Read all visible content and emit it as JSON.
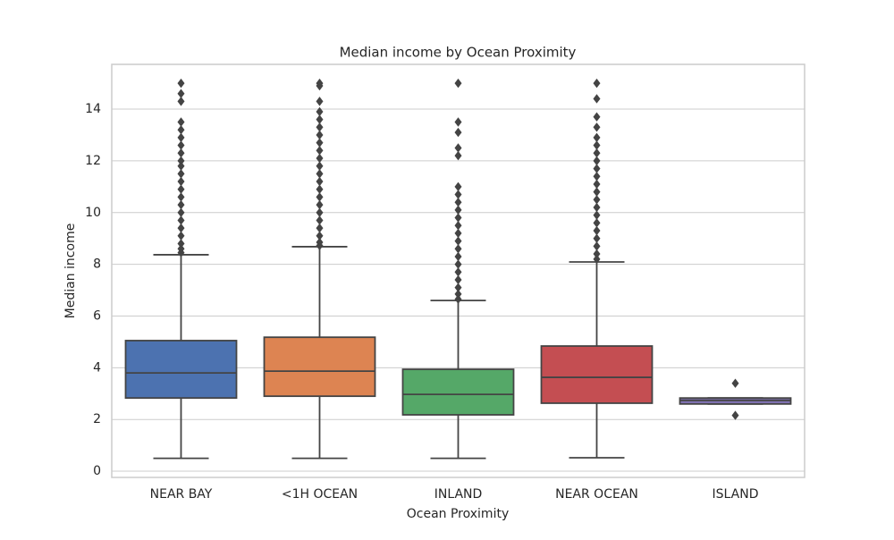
{
  "chart_data": {
    "type": "box",
    "title": "Median income by Ocean Proximity",
    "x_label": "Ocean Proximity",
    "y_label": "Median income",
    "categories": [
      "NEAR BAY",
      "<1H OCEAN",
      "INLAND",
      "NEAR OCEAN",
      "ISLAND"
    ],
    "colors": [
      "#4c72b0",
      "#dd8452",
      "#55a868",
      "#c44e52",
      "#8172b3"
    ],
    "boxes": [
      {
        "low": 0.5,
        "q1": 2.83,
        "median": 3.8,
        "q3": 5.05,
        "high": 8.37,
        "outliers": [
          15.0,
          14.6,
          14.3,
          13.5,
          13.2,
          12.9,
          12.6,
          12.3,
          12.0,
          11.8,
          11.5,
          11.2,
          10.9,
          10.6,
          10.3,
          10.0,
          9.7,
          9.4,
          9.1,
          8.8,
          8.6,
          8.45
        ]
      },
      {
        "low": 0.5,
        "q1": 2.9,
        "median": 3.87,
        "q3": 5.18,
        "high": 8.68,
        "outliers": [
          15.0,
          14.9,
          14.3,
          13.9,
          13.6,
          13.3,
          13.0,
          12.7,
          12.4,
          12.1,
          11.8,
          11.5,
          11.2,
          10.9,
          10.6,
          10.3,
          10.0,
          9.7,
          9.4,
          9.1,
          8.85,
          8.72
        ]
      },
      {
        "low": 0.5,
        "q1": 2.18,
        "median": 2.97,
        "q3": 3.94,
        "high": 6.6,
        "outliers": [
          15.0,
          13.5,
          13.1,
          12.5,
          12.2,
          11.0,
          10.7,
          10.4,
          10.1,
          9.8,
          9.5,
          9.2,
          8.9,
          8.6,
          8.3,
          8.0,
          7.7,
          7.4,
          7.1,
          6.85,
          6.65
        ]
      },
      {
        "low": 0.52,
        "q1": 2.63,
        "median": 3.63,
        "q3": 4.84,
        "high": 8.09,
        "outliers": [
          15.0,
          14.4,
          13.7,
          13.3,
          12.9,
          12.6,
          12.3,
          12.0,
          11.7,
          11.4,
          11.1,
          10.8,
          10.5,
          10.2,
          9.9,
          9.6,
          9.3,
          9.0,
          8.7,
          8.4,
          8.2
        ]
      },
      {
        "low": 2.6,
        "q1": 2.6,
        "median": 2.74,
        "q3": 2.83,
        "high": 2.83,
        "outliers": [
          3.4,
          2.16
        ]
      }
    ],
    "ylim": [
      -0.24,
      15.73
    ],
    "yticks": [
      0,
      2,
      4,
      6,
      8,
      10,
      12,
      14
    ],
    "grid": true
  }
}
